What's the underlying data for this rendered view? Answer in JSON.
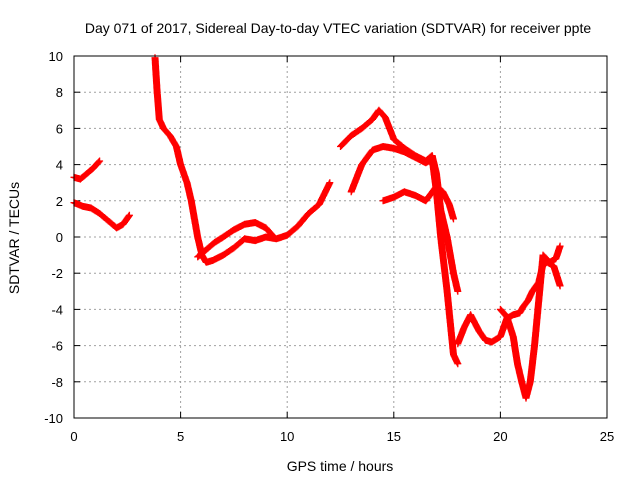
{
  "chart_data": {
    "type": "scatter",
    "title": "Day 071 of 2017, Sidereal Day-to-day VTEC variation (SDTVAR) for receiver ppte",
    "xlabel": "GPS time / hours",
    "ylabel": "SDTVAR / TECUs",
    "xlim": [
      0,
      25
    ],
    "ylim": [
      -10,
      10
    ],
    "xticks": [
      0,
      5,
      10,
      15,
      20,
      25
    ],
    "yticks": [
      -10,
      -8,
      -6,
      -4,
      -2,
      0,
      2,
      4,
      6,
      8,
      10
    ],
    "grid": true,
    "legend": "none",
    "marker": "+",
    "color": "#ff0000",
    "series": [
      {
        "x": [
          0.0,
          0.3,
          0.6,
          0.9,
          1.2
        ],
        "y": [
          3.3,
          3.2,
          3.5,
          3.8,
          4.2
        ]
      },
      {
        "x": [
          0.0,
          0.4,
          0.8,
          1.2,
          1.6,
          2.0,
          2.3,
          2.6
        ],
        "y": [
          1.9,
          1.7,
          1.6,
          1.3,
          0.9,
          0.5,
          0.7,
          1.2
        ]
      },
      {
        "x": [
          3.8,
          3.9,
          4.0,
          4.2,
          4.5,
          4.8,
          5.0,
          5.3,
          5.5,
          5.8,
          6.0,
          6.2,
          6.5,
          7.0,
          7.5,
          8.0,
          8.5,
          9.0,
          9.5,
          10.0,
          10.5,
          11.0,
          11.5,
          12.0
        ],
        "y": [
          9.9,
          8.0,
          6.5,
          6.0,
          5.6,
          5.0,
          4.0,
          3.0,
          2.0,
          0.0,
          -1.0,
          -1.4,
          -1.3,
          -1.0,
          -0.6,
          -0.1,
          -0.2,
          0.0,
          -0.1,
          0.1,
          0.6,
          1.3,
          1.8,
          3.0
        ]
      },
      {
        "x": [
          5.8,
          6.2,
          6.6,
          7.0,
          7.5,
          8.0,
          8.5,
          9.0,
          9.3
        ],
        "y": [
          -1.1,
          -0.7,
          -0.3,
          0.0,
          0.4,
          0.7,
          0.8,
          0.5,
          0.1
        ]
      },
      {
        "x": [
          12.5,
          13.0,
          13.5,
          14.0,
          14.3,
          14.6,
          15.0,
          15.5,
          16.0,
          16.5,
          16.8,
          17.0,
          17.2,
          17.5,
          17.8,
          18.0
        ],
        "y": [
          5.0,
          5.6,
          6.0,
          6.5,
          7.0,
          6.6,
          5.4,
          4.9,
          4.5,
          4.2,
          4.5,
          3.5,
          1.5,
          0.0,
          -2.0,
          -3.0
        ]
      },
      {
        "x": [
          13.0,
          13.5,
          14.0,
          14.5,
          15.0,
          15.5,
          16.0,
          16.5,
          16.8,
          17.0,
          17.2,
          17.5,
          17.8,
          18.0
        ],
        "y": [
          2.5,
          4.0,
          4.8,
          5.0,
          4.9,
          4.7,
          4.4,
          4.1,
          4.3,
          2.5,
          0.0,
          -3.0,
          -6.5,
          -7.0
        ]
      },
      {
        "x": [
          14.5,
          15.0,
          15.5,
          16.0,
          16.5,
          17.0,
          17.3,
          17.6,
          17.8
        ],
        "y": [
          2.0,
          2.2,
          2.5,
          2.3,
          2.0,
          2.8,
          2.5,
          1.8,
          1.0
        ]
      },
      {
        "x": [
          18.0,
          18.3,
          18.6,
          19.0,
          19.3,
          19.6,
          20.0,
          20.3,
          20.6,
          20.9,
          21.1,
          21.3,
          21.5,
          21.8,
          22.0,
          22.2,
          22.5,
          22.8
        ],
        "y": [
          -5.9,
          -5.0,
          -4.3,
          -5.2,
          -5.7,
          -5.8,
          -5.5,
          -4.5,
          -4.3,
          -4.2,
          -3.8,
          -3.5,
          -3.0,
          -2.5,
          -1.5,
          -1.4,
          -1.6,
          -2.7
        ]
      },
      {
        "x": [
          20.0,
          20.3,
          20.6,
          20.8,
          21.0,
          21.2,
          21.4,
          21.6,
          21.8,
          22.0,
          22.3,
          22.6,
          22.8
        ],
        "y": [
          -4.0,
          -4.4,
          -5.5,
          -7.0,
          -8.0,
          -8.9,
          -8.0,
          -6.0,
          -3.5,
          -1.0,
          -1.4,
          -1.2,
          -0.5
        ]
      }
    ]
  }
}
